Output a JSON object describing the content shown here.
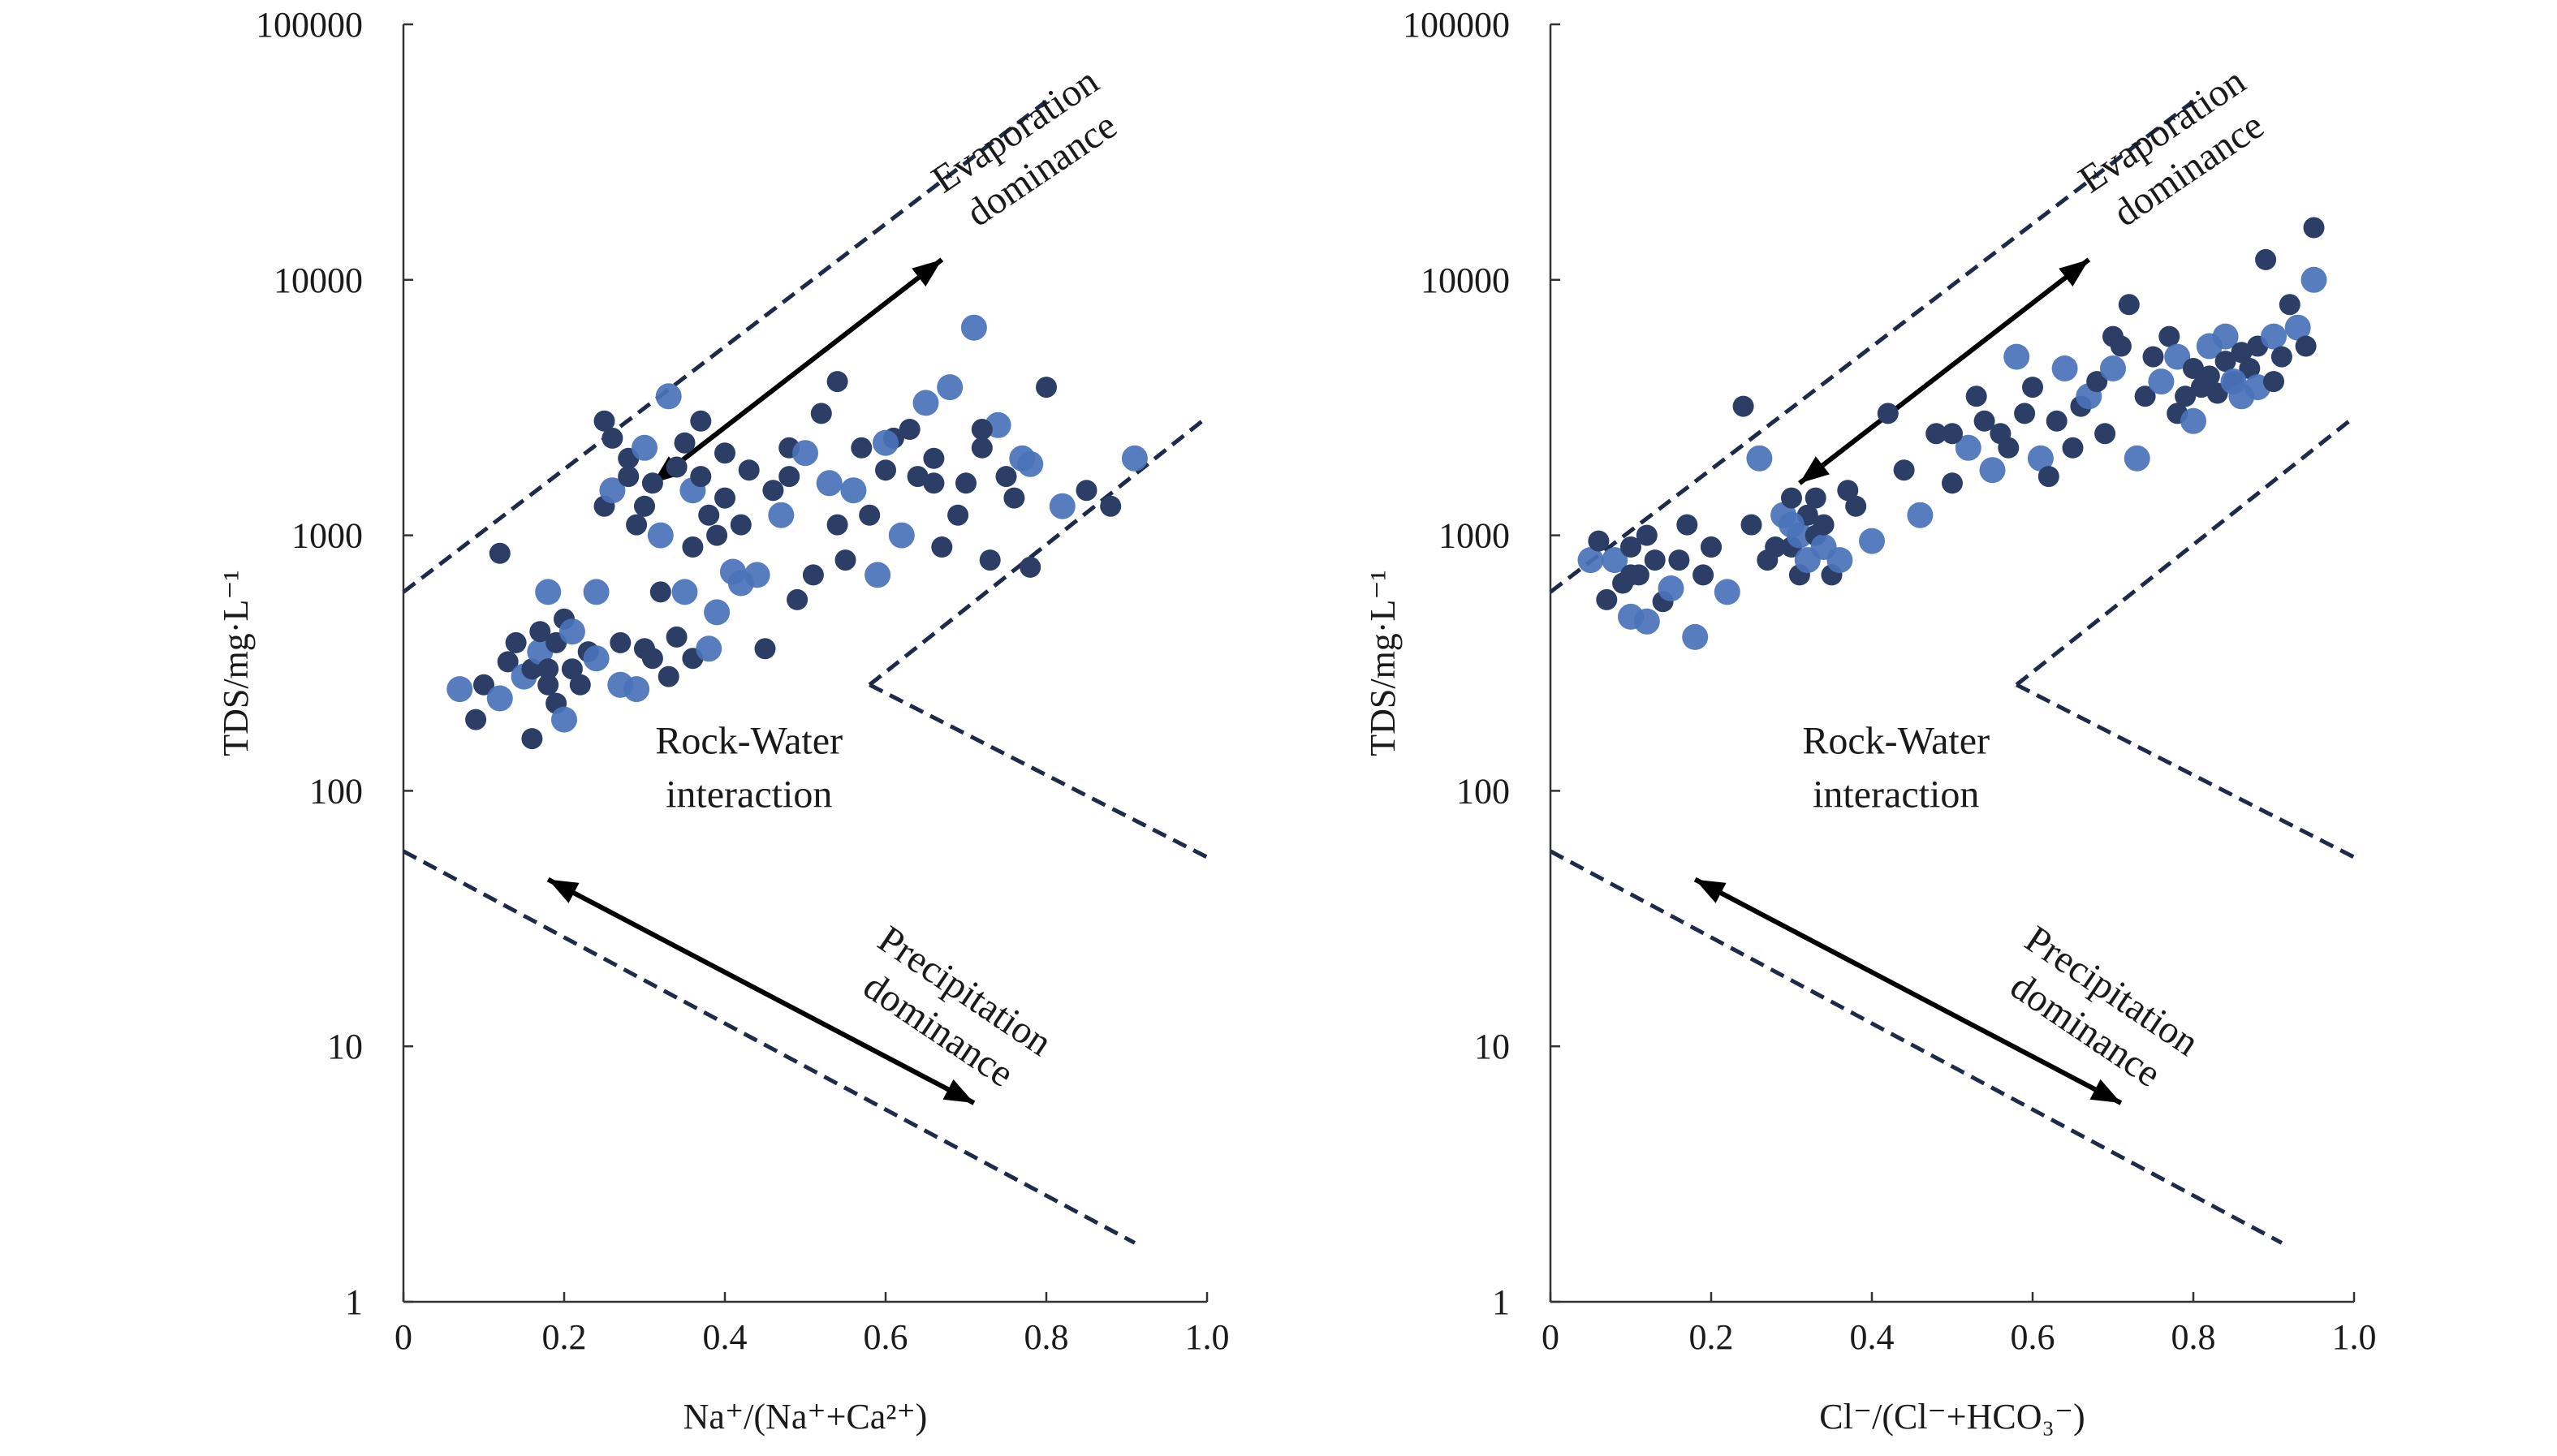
{
  "chart_data": [
    {
      "type": "scatter",
      "title": "",
      "xlabel": "Na⁺/(Na⁺+Ca²⁺)",
      "ylabel": "TDS/mg·L⁻¹",
      "xlim": [
        0,
        1.0
      ],
      "ylim": [
        1,
        100000
      ],
      "yscale": "log",
      "x_ticks": [
        "0",
        "0.2",
        "0.4",
        "0.6",
        "0.8",
        "1.0"
      ],
      "y_ticks": [
        "1",
        "10",
        "100",
        "1000",
        "10000",
        "100000"
      ],
      "grid": false,
      "marker_color": "#2c3e66",
      "marker_color_alt": "#4a72b8",
      "boundary_color": "#1e2a4a",
      "region_labels": [
        {
          "lines": [
            "Evaporation",
            "dominance"
          ]
        },
        {
          "lines": [
            "Rock-Water",
            "interaction"
          ]
        },
        {
          "lines": [
            "Precipitation",
            "dominance"
          ]
        }
      ],
      "boundaries": [
        {
          "x": [
            0.0,
            0.8
          ],
          "y": [
            600,
            50000
          ]
        },
        {
          "x": [
            0.58,
            1.0
          ],
          "y": [
            260,
            2900
          ]
        },
        {
          "x": [
            0.58,
            1.0
          ],
          "y": [
            260,
            55
          ]
        },
        {
          "x": [
            0.0,
            0.91
          ],
          "y": [
            58,
            1.7
          ]
        }
      ],
      "arrows": [
        {
          "x": [
            0.67,
            0.31
          ],
          "y": [
            12000,
            1600
          ]
        },
        {
          "x": [
            0.18,
            0.71
          ],
          "y": [
            45,
            6
          ]
        }
      ],
      "points": {
        "x": [
          0.07,
          0.09,
          0.1,
          0.12,
          0.13,
          0.14,
          0.15,
          0.16,
          0.16,
          0.17,
          0.17,
          0.18,
          0.18,
          0.19,
          0.19,
          0.2,
          0.2,
          0.21,
          0.21,
          0.22,
          0.23,
          0.24,
          0.25,
          0.25,
          0.26,
          0.26,
          0.27,
          0.27,
          0.28,
          0.28,
          0.29,
          0.29,
          0.3,
          0.3,
          0.31,
          0.31,
          0.32,
          0.32,
          0.33,
          0.33,
          0.34,
          0.34,
          0.35,
          0.35,
          0.36,
          0.36,
          0.37,
          0.37,
          0.38,
          0.38,
          0.39,
          0.39,
          0.4,
          0.4,
          0.41,
          0.42,
          0.43,
          0.44,
          0.45,
          0.46,
          0.47,
          0.48,
          0.49,
          0.5,
          0.51,
          0.52,
          0.53,
          0.54,
          0.55,
          0.56,
          0.57,
          0.58,
          0.59,
          0.6,
          0.61,
          0.62,
          0.63,
          0.64,
          0.65,
          0.66,
          0.67,
          0.68,
          0.69,
          0.7,
          0.71,
          0.72,
          0.73,
          0.74,
          0.75,
          0.76,
          0.77,
          0.78,
          0.8,
          0.82,
          0.85,
          0.88,
          0.91,
          0.12,
          0.18,
          0.24,
          0.3,
          0.36,
          0.42,
          0.48,
          0.54,
          0.6,
          0.66,
          0.72,
          0.78
        ],
        "y": [
          250,
          190,
          260,
          230,
          320,
          380,
          280,
          300,
          160,
          350,
          420,
          260,
          600,
          220,
          380,
          190,
          470,
          300,
          420,
          260,
          350,
          330,
          2800,
          1300,
          1500,
          2400,
          380,
          260,
          2000,
          1700,
          250,
          1100,
          360,
          2200,
          330,
          1600,
          1000,
          600,
          280,
          3500,
          400,
          1850,
          600,
          2300,
          330,
          1500,
          2800,
          1700,
          360,
          1200,
          1000,
          500,
          1400,
          2100,
          720,
          1100,
          1800,
          700,
          360,
          1500,
          1200,
          2200,
          560,
          2100,
          700,
          3000,
          1600,
          4000,
          800,
          1500,
          2200,
          1200,
          700,
          1800,
          2400,
          1000,
          2600,
          1700,
          3300,
          2000,
          900,
          3800,
          1200,
          1600,
          6500,
          2200,
          800,
          2700,
          1700,
          1400,
          2000,
          750,
          3800,
          1300,
          1500,
          1300,
          2000,
          850,
          300,
          600,
          1300,
          900,
          650,
          1700,
          1100,
          2300,
          1600,
          2600,
          1900
        ]
      }
    },
    {
      "type": "scatter",
      "title": "",
      "xlabel": "Cl⁻/(Cl⁻+HCO₃⁻)",
      "ylabel": "TDS/mg·L⁻¹",
      "xlim": [
        0,
        1.0
      ],
      "ylim": [
        1,
        100000
      ],
      "yscale": "log",
      "x_ticks": [
        "0",
        "0.2",
        "0.4",
        "0.6",
        "0.8",
        "1.0"
      ],
      "y_ticks": [
        "1",
        "10",
        "100",
        "1000",
        "10000",
        "100000"
      ],
      "grid": false,
      "marker_color": "#2c3e66",
      "marker_color_alt": "#4a72b8",
      "boundary_color": "#1e2a4a",
      "region_labels": [
        {
          "lines": [
            "Evaporation",
            "dominance"
          ]
        },
        {
          "lines": [
            "Rock-Water",
            "interaction"
          ]
        },
        {
          "lines": [
            "Precipitation",
            "dominance"
          ]
        }
      ],
      "boundaries": [
        {
          "x": [
            0.0,
            0.8
          ],
          "y": [
            600,
            50000
          ]
        },
        {
          "x": [
            0.58,
            1.0
          ],
          "y": [
            260,
            2900
          ]
        },
        {
          "x": [
            0.58,
            1.0
          ],
          "y": [
            260,
            55
          ]
        },
        {
          "x": [
            0.0,
            0.91
          ],
          "y": [
            58,
            1.7
          ]
        }
      ],
      "arrows": [
        {
          "x": [
            0.67,
            0.31
          ],
          "y": [
            12000,
            1600
          ]
        },
        {
          "x": [
            0.18,
            0.71
          ],
          "y": [
            45,
            6
          ]
        }
      ],
      "points": {
        "x": [
          0.05,
          0.06,
          0.07,
          0.08,
          0.09,
          0.1,
          0.1,
          0.11,
          0.12,
          0.12,
          0.13,
          0.14,
          0.15,
          0.16,
          0.17,
          0.18,
          0.19,
          0.2,
          0.22,
          0.24,
          0.25,
          0.26,
          0.27,
          0.28,
          0.29,
          0.3,
          0.3,
          0.31,
          0.31,
          0.32,
          0.32,
          0.33,
          0.33,
          0.34,
          0.34,
          0.35,
          0.36,
          0.37,
          0.38,
          0.4,
          0.42,
          0.44,
          0.46,
          0.48,
          0.5,
          0.52,
          0.53,
          0.54,
          0.55,
          0.56,
          0.57,
          0.58,
          0.59,
          0.6,
          0.61,
          0.62,
          0.63,
          0.64,
          0.65,
          0.66,
          0.67,
          0.68,
          0.69,
          0.7,
          0.71,
          0.72,
          0.73,
          0.74,
          0.75,
          0.76,
          0.77,
          0.78,
          0.78,
          0.79,
          0.8,
          0.8,
          0.81,
          0.82,
          0.82,
          0.83,
          0.84,
          0.84,
          0.85,
          0.86,
          0.86,
          0.87,
          0.88,
          0.88,
          0.89,
          0.9,
          0.9,
          0.91,
          0.92,
          0.93,
          0.94,
          0.95,
          0.95,
          0.1,
          0.2,
          0.3,
          0.5,
          0.7,
          0.85
        ],
        "y": [
          800,
          950,
          560,
          800,
          650,
          900,
          480,
          700,
          1000,
          460,
          800,
          550,
          620,
          800,
          1100,
          400,
          700,
          900,
          600,
          3200,
          1100,
          2000,
          800,
          900,
          1200,
          900,
          1400,
          1000,
          700,
          1200,
          800,
          1000,
          1400,
          900,
          1100,
          700,
          800,
          1500,
          1300,
          950,
          3000,
          1800,
          1200,
          2500,
          1600,
          2200,
          3500,
          2800,
          1800,
          2500,
          2200,
          5000,
          3000,
          3800,
          2000,
          1700,
          2800,
          4500,
          2200,
          3200,
          3500,
          4000,
          2500,
          4500,
          5500,
          8000,
          2000,
          3500,
          5000,
          4000,
          6000,
          3000,
          5000,
          3500,
          4500,
          2800,
          3800,
          4200,
          5500,
          3600,
          4800,
          6000,
          4000,
          5200,
          3500,
          4500,
          5500,
          3800,
          12000,
          4000,
          6000,
          5000,
          8000,
          6500,
          5500,
          16000,
          10000,
          700,
          900,
          1100,
          2500,
          6000,
          4000
        ]
      }
    }
  ]
}
